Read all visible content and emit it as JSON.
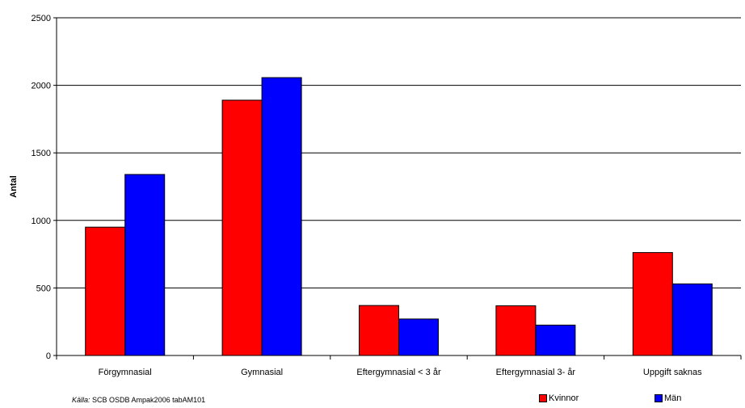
{
  "chart_data": {
    "type": "bar",
    "categories": [
      "Förgymnasial",
      "Gymnasial",
      "Eftergymnasial < 3 år",
      "Eftergymnasial 3- år",
      "Uppgift saknas"
    ],
    "series": [
      {
        "name": "Kvinnor",
        "color": "#FF0000",
        "values": [
          950,
          1890,
          370,
          368,
          762
        ]
      },
      {
        "name": "Män",
        "color": "#0000FF",
        "values": [
          1340,
          2057,
          270,
          225,
          530
        ]
      }
    ],
    "ylabel": "Antal",
    "xlabel": "",
    "ylim": [
      0,
      2500
    ],
    "yticks": [
      0,
      500,
      1000,
      1500,
      2000,
      2500
    ],
    "grid": true,
    "legend_position": "bottom-right"
  },
  "source": {
    "prefix": "Källa:",
    "text": "SCB OSDB Ampak2006 tabAM101"
  }
}
